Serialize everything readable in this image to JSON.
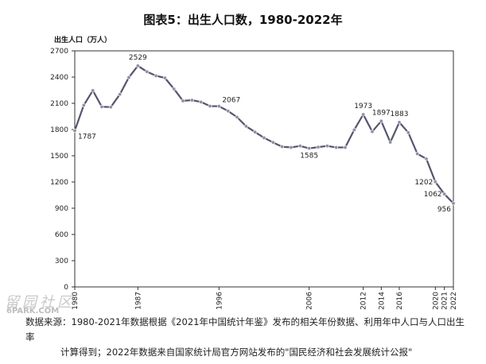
{
  "title": "图表5：出生人口数，1980-2022年",
  "unit_label": "出生人口（万人）",
  "watermark": "留园社区",
  "watermark_url": "6PARK.COM",
  "source": {
    "line1": "数据来源：1980-2021年数据根据《2021年中国统计年鉴》发布的相关年份数据、利用年中人口与人口出生率",
    "line2": "计算得到；2022年数据来自国家统计局官方网站发布的\"国民经济和社会发展统计公报\""
  },
  "chart_data": {
    "type": "line",
    "title": "图表5：出生人口数，1980-2022年",
    "ylabel": "出生人口（万人）",
    "ylim": [
      0,
      2700
    ],
    "yticks": [
      0,
      300,
      600,
      900,
      1200,
      1500,
      1800,
      2100,
      2400,
      2700
    ],
    "xlim": [
      1980,
      2022
    ],
    "xticks": [
      "1980",
      "1987",
      "1996",
      "2006",
      "2012",
      "2014",
      "2016",
      "2020",
      "2021",
      "2022"
    ],
    "series": [
      {
        "color": "#55556e",
        "x": [
          1980,
          1981,
          1982,
          1983,
          1984,
          1985,
          1986,
          1987,
          1988,
          1989,
          1990,
          1991,
          1992,
          1993,
          1994,
          1995,
          1996,
          1997,
          1998,
          1999,
          2000,
          2001,
          2002,
          2003,
          2004,
          2005,
          2006,
          2007,
          2008,
          2009,
          2010,
          2011,
          2012,
          2013,
          2014,
          2015,
          2016,
          2017,
          2018,
          2019,
          2020,
          2021,
          2022
        ],
        "y": [
          1787,
          2078,
          2246,
          2060,
          2057,
          2203,
          2396,
          2529,
          2462,
          2415,
          2391,
          2265,
          2128,
          2136,
          2115,
          2068,
          2067,
          2012,
          1942,
          1838,
          1771,
          1705,
          1653,
          1604,
          1595,
          1612,
          1585,
          1599,
          1612,
          1595,
          1595,
          1796,
          1973,
          1776,
          1897,
          1655,
          1883,
          1765,
          1523,
          1465,
          1202,
          1062,
          956
        ]
      }
    ],
    "annotations": [
      {
        "x": 1980,
        "y": 1787,
        "text": "1787"
      },
      {
        "x": 1987,
        "y": 2529,
        "text": "2529"
      },
      {
        "x": 1996,
        "y": 2067,
        "text": "2067"
      },
      {
        "x": 2006,
        "y": 1585,
        "text": "1585"
      },
      {
        "x": 2012,
        "y": 1973,
        "text": "1973"
      },
      {
        "x": 2014,
        "y": 1897,
        "text": "1897"
      },
      {
        "x": 2016,
        "y": 1883,
        "text": "1883"
      },
      {
        "x": 2020,
        "y": 1202,
        "text": "1202"
      },
      {
        "x": 2021,
        "y": 1062,
        "text": "1062"
      },
      {
        "x": 2022,
        "y": 956,
        "text": "956"
      }
    ],
    "grid": false,
    "legend": "none"
  }
}
